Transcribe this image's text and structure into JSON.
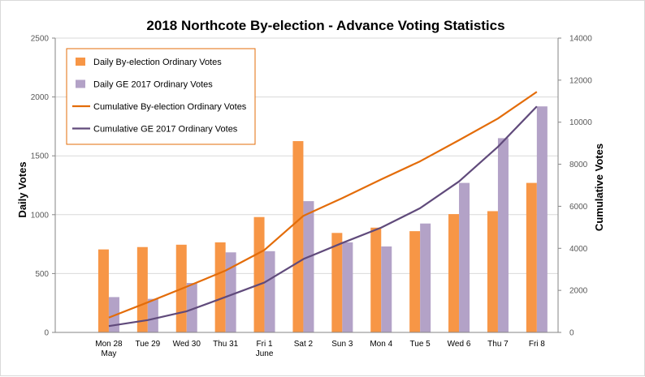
{
  "chart_data": {
    "type": "bar",
    "title": "2018 Northcote By-election - Advance Voting Statistics",
    "ylabel": "Daily Votes",
    "y2label": "Cumulative Votes",
    "ylim": [
      0,
      2500
    ],
    "y2lim": [
      0,
      14000
    ],
    "yticks": [
      "0",
      "500",
      "1000",
      "1500",
      "2000",
      "2500"
    ],
    "y2ticks": [
      "0",
      "2000",
      "4000",
      "6000",
      "8000",
      "10000",
      "12000",
      "14000"
    ],
    "categories": [
      [
        "Mon 28",
        "May"
      ],
      [
        "Tue 29"
      ],
      [
        "Wed 30"
      ],
      [
        "Thu 31"
      ],
      [
        "Fri 1",
        "June"
      ],
      [
        "Sat 2"
      ],
      [
        "Sun 3"
      ],
      [
        "Mon 4"
      ],
      [
        "Tue 5"
      ],
      [
        "Wed 6"
      ],
      [
        "Thu 7"
      ],
      [
        "Fri 8"
      ]
    ],
    "series": [
      {
        "name": "Daily By-election Ordinary Votes",
        "kind": "bar",
        "axis": "left",
        "color": "#F79646",
        "values": [
          705,
          725,
          745,
          765,
          980,
          1625,
          845,
          890,
          860,
          1005,
          1030,
          1270
        ]
      },
      {
        "name": "Daily GE 2017 Ordinary Votes",
        "kind": "bar",
        "axis": "left",
        "color": "#B3A2C7",
        "values": [
          300,
          285,
          420,
          680,
          690,
          1115,
          765,
          730,
          925,
          1270,
          1650,
          1920
        ]
      },
      {
        "name": "Cumulative By-election Ordinary Votes",
        "kind": "line",
        "axis": "right",
        "color": "#E36C09",
        "values": [
          705,
          1430,
          2175,
          2940,
          3920,
          5545,
          6390,
          7280,
          8140,
          9145,
          10175,
          11445
        ]
      },
      {
        "name": "Cumulative GE 2017 Ordinary Votes",
        "kind": "line",
        "axis": "right",
        "color": "#604A7B",
        "values": [
          300,
          585,
          1005,
          1685,
          2375,
          3490,
          4255,
          4985,
          5910,
          7180,
          8830,
          10750
        ]
      }
    ],
    "grid": "horizontal",
    "legend": "top-left"
  }
}
